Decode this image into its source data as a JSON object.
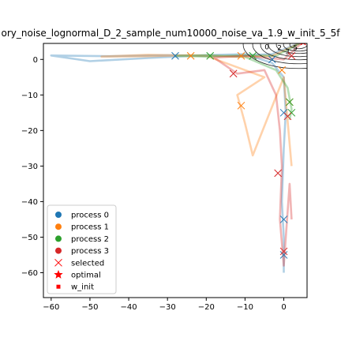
{
  "chart_data": {
    "type": "line",
    "title": "ory_noise_lognormal_D_2_sample_num10000_noise_va_1.9_w_init_5_5f",
    "xlim": [
      -62,
      6
    ],
    "ylim": [
      -67,
      4.5
    ],
    "x_ticks": [
      -60,
      -50,
      -40,
      -30,
      -20,
      -10,
      0
    ],
    "y_ticks": [
      0,
      -10,
      -20,
      -30,
      -40,
      -50,
      -60
    ],
    "grid": false,
    "legend_position": "lower-left",
    "optimal": {
      "x": 5,
      "y": 5
    },
    "w_init": {
      "x": 5,
      "y": 5
    },
    "contour_levels": [
      "0",
      "2",
      "3",
      "5"
    ],
    "series": [
      {
        "name": "process 0",
        "color": "#1f77b4",
        "x": [
          5,
          -3,
          -10,
          -20,
          -30,
          -45,
          -60,
          -50,
          -35,
          -20,
          -10,
          -3,
          0,
          0.5,
          0,
          -0.5,
          0,
          0
        ],
        "y": [
          5,
          1.5,
          1.2,
          1.0,
          1.2,
          0.9,
          1.1,
          -0.5,
          0.4,
          1.2,
          1.5,
          -1,
          -5,
          -15,
          -25,
          -40,
          -50,
          -60
        ],
        "selected": [
          [
            -28,
            1
          ],
          [
            -3,
            0
          ],
          [
            0,
            -15
          ],
          [
            0,
            -45
          ],
          [
            0,
            -55
          ]
        ]
      },
      {
        "name": "process 1",
        "color": "#ff7f0e",
        "x": [
          5,
          -3,
          -12,
          -25,
          -35,
          -47,
          -35,
          -20,
          -10,
          -5,
          -12,
          -10,
          -8,
          0,
          2
        ],
        "y": [
          5,
          1.0,
          0.8,
          1.2,
          0.9,
          0.8,
          1.3,
          1.0,
          -3,
          -5,
          -10,
          -18,
          -27,
          -5,
          -30
        ],
        "selected": [
          [
            -24,
            1
          ],
          [
            -11,
            1
          ],
          [
            -11,
            -13
          ],
          [
            -0.5,
            -3
          ],
          [
            1.5,
            -12
          ]
        ]
      },
      {
        "name": "process 2",
        "color": "#2ca02c",
        "x": [
          5,
          -2,
          -10,
          -20,
          -28,
          -20,
          -10,
          -2,
          1,
          2,
          1.5
        ],
        "y": [
          5,
          1,
          1.2,
          0.8,
          1.0,
          1.2,
          0.7,
          -3,
          -8,
          -14,
          -17
        ],
        "selected": [
          [
            -19,
            1
          ],
          [
            -8,
            1
          ],
          [
            1.5,
            -12
          ],
          [
            2,
            -15
          ]
        ]
      },
      {
        "name": "process 3",
        "color": "#d62728",
        "x": [
          5,
          0,
          -10,
          -18,
          -12,
          -5,
          -2,
          -1,
          -0.5,
          -1,
          0,
          1.5,
          2
        ],
        "y": [
          5,
          0,
          1,
          0.5,
          -4,
          -3,
          -10,
          -20,
          -30,
          -45,
          -58,
          -35,
          -45
        ],
        "selected": [
          [
            -13,
            -4
          ],
          [
            -1.5,
            -32
          ],
          [
            0,
            -54
          ],
          [
            1,
            -16
          ],
          [
            2,
            1
          ]
        ]
      }
    ],
    "legend": [
      {
        "label": "process 0",
        "color": "#1f77b4",
        "marker": "circle"
      },
      {
        "label": "process 1",
        "color": "#ff7f0e",
        "marker": "circle"
      },
      {
        "label": "process 2",
        "color": "#2ca02c",
        "marker": "circle"
      },
      {
        "label": "process 3",
        "color": "#d62728",
        "marker": "circle"
      },
      {
        "label": "selected",
        "color": "#ff0000",
        "marker": "x"
      },
      {
        "label": "optimal",
        "color": "#ff0000",
        "marker": "star"
      },
      {
        "label": "w_init",
        "color": "#ff0000",
        "marker": "square"
      }
    ]
  }
}
